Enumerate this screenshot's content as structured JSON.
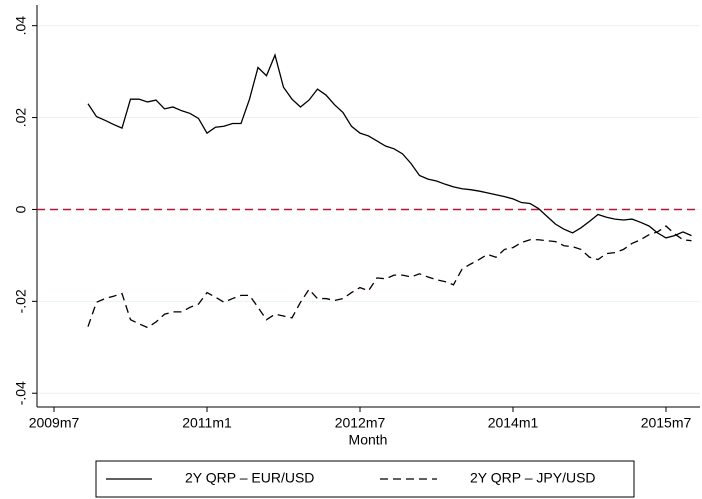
{
  "chart_data": {
    "type": "line",
    "x": [
      "2009m11",
      "2009m12",
      "2010m1",
      "2010m2",
      "2010m3",
      "2010m4",
      "2010m5",
      "2010m6",
      "2010m7",
      "2010m8",
      "2010m9",
      "2010m10",
      "2010m11",
      "2010m12",
      "2011m1",
      "2011m2",
      "2011m3",
      "2011m4",
      "2011m5",
      "2011m6",
      "2011m7",
      "2011m8",
      "2011m9",
      "2011m10",
      "2011m11",
      "2011m12",
      "2012m1",
      "2012m2",
      "2012m3",
      "2012m4",
      "2012m5",
      "2012m6",
      "2012m7",
      "2012m8",
      "2012m9",
      "2012m10",
      "2012m11",
      "2012m12",
      "2013m1",
      "2013m2",
      "2013m3",
      "2013m4",
      "2013m5",
      "2013m6",
      "2013m7",
      "2013m8",
      "2013m9",
      "2013m10",
      "2013m11",
      "2013m12",
      "2014m1",
      "2014m2",
      "2014m3",
      "2014m4",
      "2014m5",
      "2014m6",
      "2014m7",
      "2014m8",
      "2014m9",
      "2014m10",
      "2014m11",
      "2014m12",
      "2015m1",
      "2015m2",
      "2015m3",
      "2015m4",
      "2015m5",
      "2015m6",
      "2015m7",
      "2015m8",
      "2015m9",
      "2015m10"
    ],
    "series": [
      {
        "name": "2Y QRP – EUR/USD",
        "color": "#000000",
        "line_style": "solid",
        "values": [
          0.023,
          0.0202,
          0.0194,
          0.0185,
          0.0177,
          0.024,
          0.024,
          0.0234,
          0.0238,
          0.0219,
          0.0223,
          0.0215,
          0.0209,
          0.0198,
          0.0166,
          0.0179,
          0.0181,
          0.0187,
          0.0187,
          0.024,
          0.0309,
          0.0291,
          0.0336,
          0.0266,
          0.024,
          0.0223,
          0.0238,
          0.0262,
          0.0249,
          0.0228,
          0.0211,
          0.0181,
          0.0166,
          0.016,
          0.0149,
          0.0138,
          0.0132,
          0.0121,
          0.01,
          0.0074,
          0.0066,
          0.0062,
          0.0055,
          0.0049,
          0.0045,
          0.0043,
          0.004,
          0.0036,
          0.0032,
          0.0028,
          0.0023,
          0.0015,
          0.0013,
          0.0002,
          -0.0015,
          -0.0032,
          -0.0043,
          -0.0051,
          -0.004,
          -0.0026,
          -0.0011,
          -0.0017,
          -0.0021,
          -0.0023,
          -0.0021,
          -0.0028,
          -0.0036,
          -0.0051,
          -0.0062,
          -0.0057,
          -0.0049,
          -0.0057
        ]
      },
      {
        "name": "2Y QRP – JPY/USD",
        "color": "#000000",
        "line_style": "dashed",
        "values": [
          -0.0255,
          -0.0202,
          -0.0194,
          -0.0189,
          -0.0183,
          -0.024,
          -0.0249,
          -0.0257,
          -0.0245,
          -0.0228,
          -0.0223,
          -0.0223,
          -0.0213,
          -0.0206,
          -0.0181,
          -0.0191,
          -0.0202,
          -0.0194,
          -0.0187,
          -0.0187,
          -0.0213,
          -0.024,
          -0.0228,
          -0.0232,
          -0.0236,
          -0.0202,
          -0.0174,
          -0.0194,
          -0.0194,
          -0.0198,
          -0.0194,
          -0.0181,
          -0.017,
          -0.0177,
          -0.0149,
          -0.0151,
          -0.0143,
          -0.0143,
          -0.0147,
          -0.014,
          -0.0147,
          -0.0153,
          -0.0157,
          -0.0164,
          -0.013,
          -0.0119,
          -0.0109,
          -0.0098,
          -0.0104,
          -0.0087,
          -0.0083,
          -0.0072,
          -0.0066,
          -0.0066,
          -0.0068,
          -0.007,
          -0.0079,
          -0.0081,
          -0.0087,
          -0.0104,
          -0.0109,
          -0.0096,
          -0.0094,
          -0.0087,
          -0.0074,
          -0.0066,
          -0.0055,
          -0.0049,
          -0.0036,
          -0.0053,
          -0.0066,
          -0.0068
        ]
      }
    ],
    "x_label": "Month",
    "xlim": [
      "2009m5",
      "2015m11"
    ],
    "xticks": [
      "2009m7",
      "2011m1",
      "2012m7",
      "2014m1",
      "2015m7"
    ],
    "ylim": [
      -0.043,
      0.0445
    ],
    "yticks": [
      {
        "value": -0.04,
        "label": "-.04"
      },
      {
        "value": -0.02,
        "label": "-.02"
      },
      0,
      {
        "value": 0.02,
        "label": ".02"
      },
      {
        "value": 0.04,
        "label": ".04"
      }
    ],
    "grid": true,
    "ref_line": {
      "value": 0,
      "color": "#b2183c"
    },
    "legend": "bottom"
  }
}
